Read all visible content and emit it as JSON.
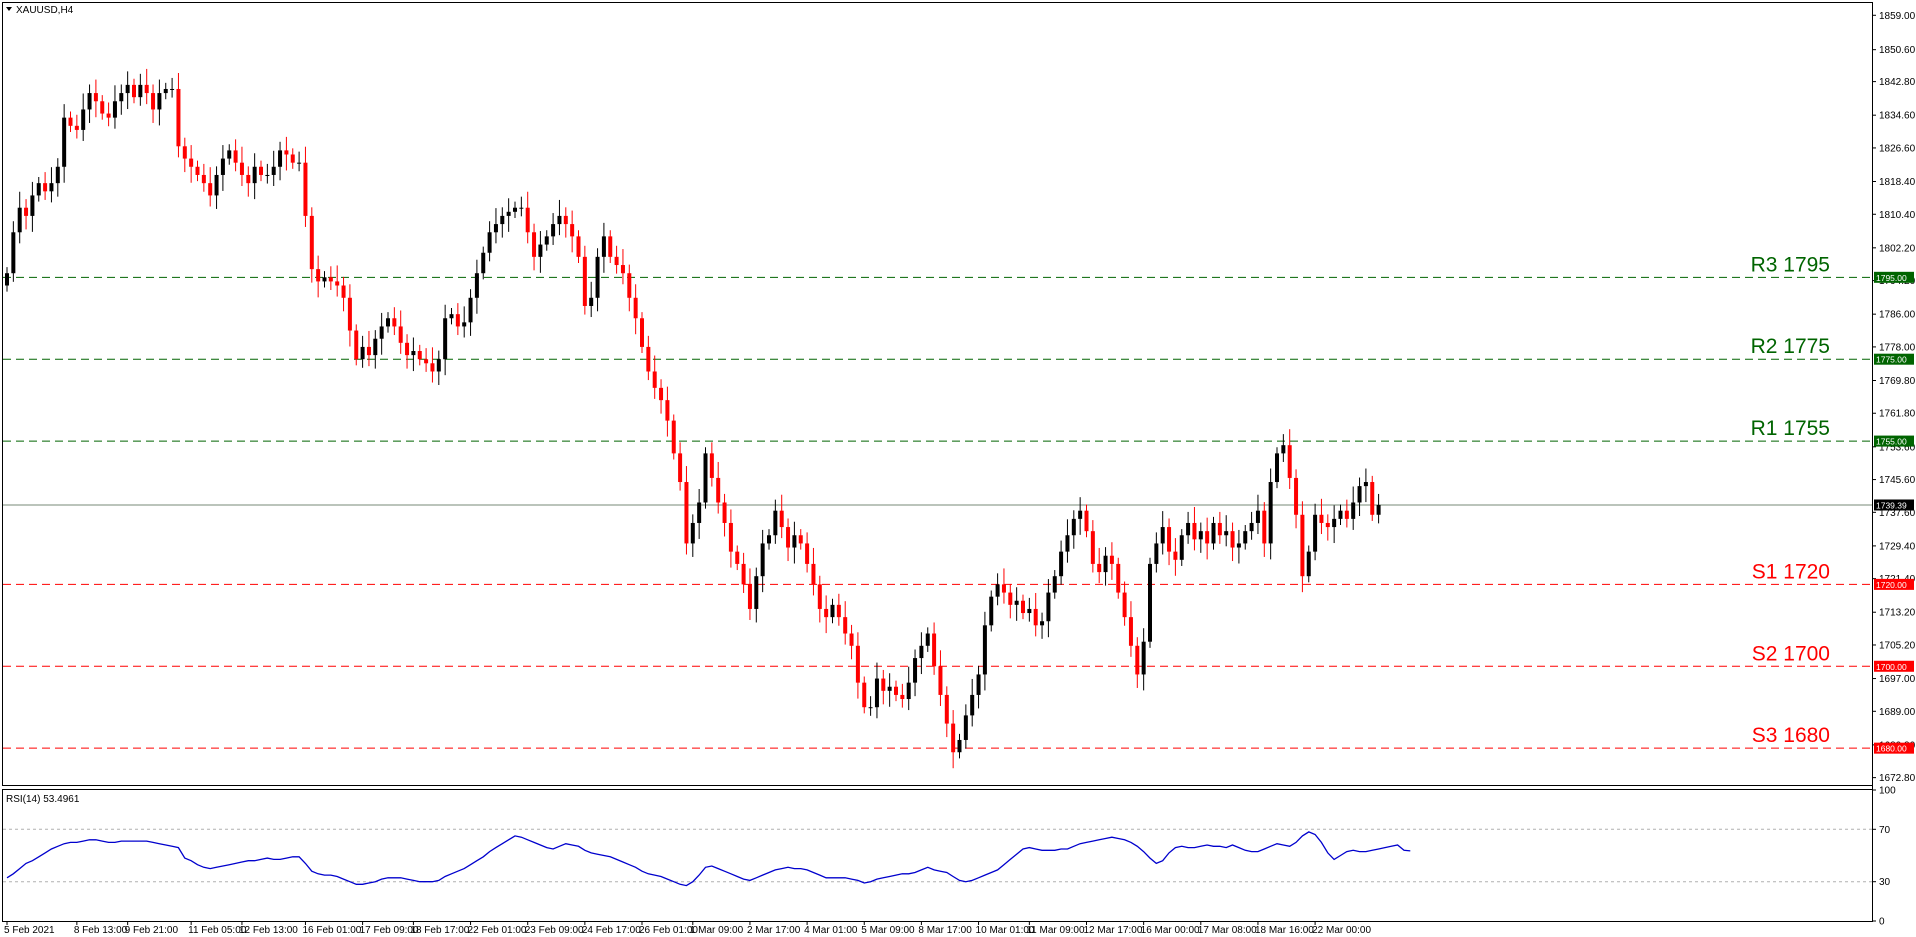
{
  "header": {
    "symbol_title": "XAUUSD,H4",
    "indicator_title": "RSI(14) 53.4961"
  },
  "colors": {
    "bull": "#000000",
    "bear": "#ff0000",
    "support": "#ff0000",
    "resistance": "#006400",
    "current_line": "#778877",
    "rsi_line": "#0000cd",
    "rsi_levels": "#b0b0b0"
  },
  "levels": [
    {
      "name": "R3",
      "price": 1795,
      "label": "R3 1795",
      "badge": "1795.00",
      "kind": "resistance"
    },
    {
      "name": "R2",
      "price": 1775,
      "label": "R2 1775",
      "badge": "1775.00",
      "kind": "resistance"
    },
    {
      "name": "R1",
      "price": 1755,
      "label": "R1 1755",
      "badge": "1755.00",
      "kind": "resistance"
    },
    {
      "name": "S1",
      "price": 1720,
      "label": "S1 1720",
      "badge": "1720.00",
      "kind": "support"
    },
    {
      "name": "S2",
      "price": 1700,
      "label": "S2 1700",
      "badge": "1700.00",
      "kind": "support"
    },
    {
      "name": "S3",
      "price": 1680,
      "label": "S3 1680",
      "badge": "1680.00",
      "kind": "support"
    }
  ],
  "current_price": {
    "value": 1739.39,
    "badge": "1739.39"
  },
  "chart_data": {
    "type": "candlestick",
    "symbol": "XAUUSD",
    "timeframe": "H4",
    "ylim": [
      1671.0,
      1862.0
    ],
    "y_ticks": [
      "1859.00",
      "1850.60",
      "1842.80",
      "1834.60",
      "1826.60",
      "1818.40",
      "1810.40",
      "1802.20",
      "1794.20",
      "1786.00",
      "1778.00",
      "1769.80",
      "1761.80",
      "1753.60",
      "1745.60",
      "1737.60",
      "1729.40",
      "1721.40",
      "1713.20",
      "1705.20",
      "1697.00",
      "1689.00",
      "1680.80",
      "1672.80"
    ],
    "x_labels": [
      {
        "label": "5 Feb 2021",
        "bar": 0
      },
      {
        "label": "8 Feb 13:00",
        "bar": 11
      },
      {
        "label": "9 Feb 21:00",
        "bar": 19
      },
      {
        "label": "11 Feb 05:00",
        "bar": 29
      },
      {
        "label": "12 Feb 13:00",
        "bar": 37
      },
      {
        "label": "16 Feb 01:00",
        "bar": 47
      },
      {
        "label": "17 Feb 09:00",
        "bar": 56
      },
      {
        "label": "18 Feb 17:00",
        "bar": 64
      },
      {
        "label": "22 Feb 01:00",
        "bar": 73
      },
      {
        "label": "23 Feb 09:00",
        "bar": 82
      },
      {
        "label": "24 Feb 17:00",
        "bar": 91
      },
      {
        "label": "26 Feb 01:00",
        "bar": 100
      },
      {
        "label": "1 Mar 09:00",
        "bar": 108
      },
      {
        "label": "2 Mar 17:00",
        "bar": 117
      },
      {
        "label": "4 Mar 01:00",
        "bar": 126
      },
      {
        "label": "5 Mar 09:00",
        "bar": 135
      },
      {
        "label": "8 Mar 17:00",
        "bar": 144
      },
      {
        "label": "10 Mar 01:00",
        "bar": 153
      },
      {
        "label": "11 Mar 09:00",
        "bar": 161
      },
      {
        "label": "12 Mar 17:00",
        "bar": 170
      },
      {
        "label": "16 Mar 00:00",
        "bar": 179
      },
      {
        "label": "17 Mar 08:00",
        "bar": 188
      },
      {
        "label": "18 Mar 16:00",
        "bar": 197
      },
      {
        "label": "22 Mar 00:00",
        "bar": 206
      }
    ],
    "close_series": [
      1796,
      1806,
      1812,
      1810,
      1815,
      1818,
      1816,
      1818,
      1822,
      1834,
      1832,
      1831,
      1836,
      1840,
      1838,
      1835,
      1834,
      1838,
      1840,
      1842,
      1839,
      1842,
      1840,
      1836,
      1840,
      1841,
      1841,
      1827,
      1824,
      1822,
      1820,
      1818,
      1815,
      1820,
      1824,
      1826,
      1823,
      1820,
      1818,
      1822,
      1820,
      1820,
      1822,
      1826,
      1825,
      1823,
      1823,
      1810,
      1797,
      1794,
      1795,
      1794,
      1793,
      1790,
      1782,
      1775,
      1778,
      1776,
      1780,
      1783,
      1785,
      1783,
      1779,
      1776,
      1777,
      1775,
      1774,
      1772,
      1775,
      1785,
      1786,
      1783,
      1784,
      1790,
      1796,
      1801,
      1806,
      1808,
      1810,
      1811,
      1812,
      1812,
      1806,
      1800,
      1803,
      1805,
      1808,
      1810,
      1808,
      1805,
      1800,
      1788,
      1790,
      1800,
      1805,
      1800,
      1798,
      1796,
      1790,
      1785,
      1778,
      1772,
      1768,
      1765,
      1760,
      1752,
      1745,
      1730,
      1735,
      1740,
      1752,
      1746,
      1740,
      1735,
      1728,
      1725,
      1720,
      1714,
      1722,
      1730,
      1732,
      1738,
      1734,
      1729,
      1732,
      1730,
      1725,
      1720,
      1714,
      1712,
      1715,
      1712,
      1708,
      1705,
      1696,
      1690,
      1690,
      1697,
      1694,
      1695,
      1693,
      1692,
      1696,
      1702,
      1705,
      1708,
      1700,
      1693,
      1686,
      1679,
      1682,
      1688,
      1693,
      1698,
      1710,
      1717,
      1720,
      1718,
      1715,
      1716,
      1713,
      1714,
      1710,
      1711,
      1718,
      1722,
      1728,
      1732,
      1736,
      1738,
      1733,
      1725,
      1723,
      1727,
      1725,
      1718,
      1712,
      1705,
      1698,
      1706,
      1725,
      1730,
      1734,
      1728,
      1726,
      1732,
      1735,
      1731,
      1733,
      1730,
      1735,
      1732,
      1733,
      1729,
      1730,
      1733,
      1735,
      1738,
      1730,
      1745,
      1752,
      1754,
      1746,
      1737,
      1722,
      1728,
      1737,
      1735,
      1734,
      1736,
      1738,
      1736,
      1740,
      1744,
      1745,
      1737,
      1739.39
    ],
    "rsi": {
      "name": "RSI(14)",
      "last_value": 53.4961,
      "ylim": [
        0,
        100
      ],
      "ticks": [
        100,
        70,
        30,
        0
      ],
      "levels": [
        70,
        30
      ],
      "values": [
        33,
        36,
        40,
        44,
        46,
        49,
        52,
        55,
        57,
        59,
        60,
        60,
        61,
        62,
        62,
        61,
        60,
        60,
        61,
        61,
        61,
        61,
        61,
        60,
        59,
        58,
        57,
        56,
        48,
        46,
        43,
        41,
        40,
        41,
        42,
        43,
        44,
        45,
        46,
        46,
        47,
        48,
        47,
        47,
        48,
        49,
        49,
        44,
        38,
        36,
        35,
        35,
        34,
        32,
        30,
        28,
        28,
        29,
        30,
        32,
        33,
        33,
        33,
        32,
        31,
        30,
        30,
        30,
        31,
        34,
        36,
        38,
        40,
        43,
        46,
        49,
        53,
        56,
        59,
        62,
        65,
        64,
        62,
        60,
        58,
        56,
        55,
        57,
        59,
        58,
        57,
        54,
        52,
        51,
        50,
        49,
        47,
        45,
        43,
        41,
        38,
        36,
        35,
        34,
        32,
        30,
        28,
        27,
        30,
        35,
        41,
        42,
        40,
        38,
        36,
        34,
        32,
        31,
        33,
        35,
        37,
        39,
        40,
        41,
        40,
        40,
        39,
        37,
        35,
        33,
        33,
        33,
        33,
        32,
        31,
        29,
        30,
        32,
        33,
        34,
        35,
        36,
        36,
        37,
        39,
        41,
        39,
        38,
        37,
        34,
        31,
        30,
        31,
        33,
        35,
        37,
        39,
        43,
        47,
        51,
        55,
        56,
        55,
        54,
        54,
        54,
        55,
        55,
        57,
        59,
        60,
        61,
        62,
        63,
        64,
        63,
        62,
        60,
        57,
        53,
        48,
        44,
        46,
        52,
        56,
        57,
        56,
        56,
        57,
        58,
        57,
        57,
        56,
        58,
        56,
        54,
        53,
        53,
        55,
        57,
        59,
        58,
        57,
        60,
        65,
        68,
        66,
        60,
        52,
        47,
        50,
        53,
        54,
        53,
        53,
        54,
        55,
        56,
        57,
        58,
        54,
        53.5
      ]
    }
  }
}
